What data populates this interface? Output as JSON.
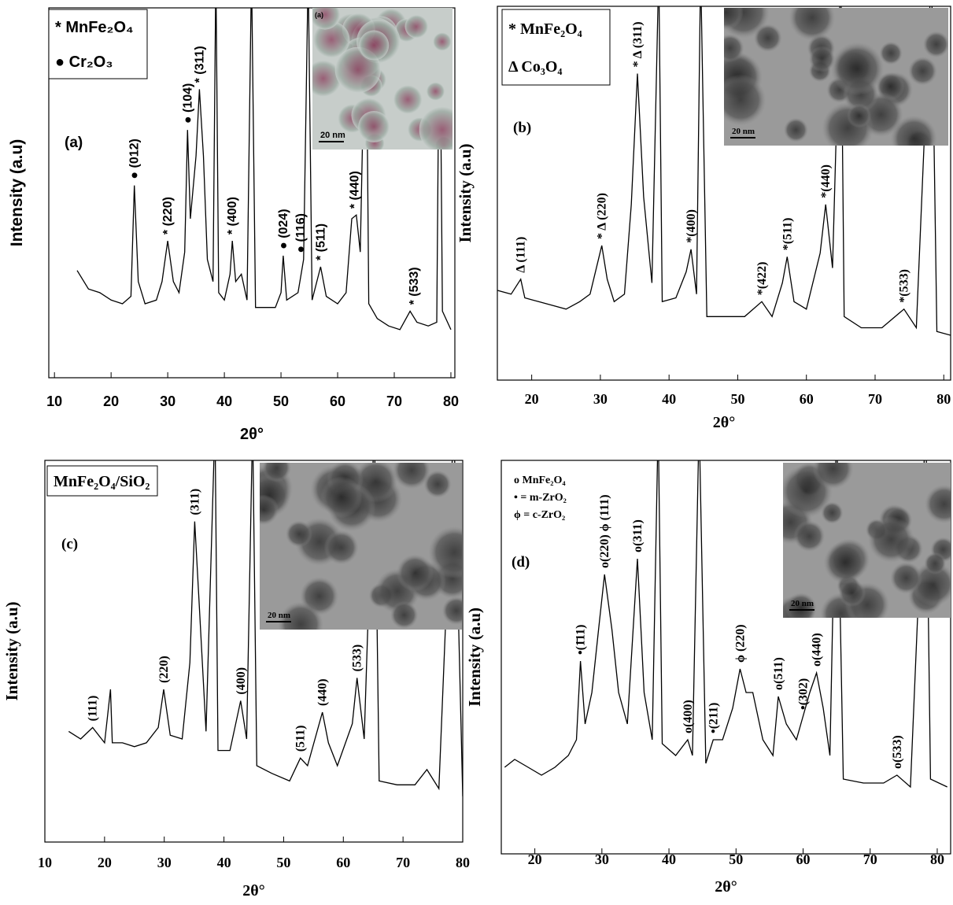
{
  "chart_data": [
    {
      "type": "line",
      "panel_label": "(a)",
      "x_label": "2θ°",
      "y_label": "Intensity (a.u)",
      "legend_entries": [
        "* MnFe₂O₄",
        "● Cr₂O₃"
      ],
      "inset": {
        "label": "(a)",
        "scale_bar": "20 nm"
      },
      "xlim": [
        9,
        80.7
      ],
      "xticks": [
        10,
        20,
        30,
        40,
        50,
        60,
        70,
        80
      ],
      "ylim": [
        0,
        100
      ],
      "color": "#000000",
      "x": [
        14,
        16,
        18,
        20,
        22,
        23.5,
        24.1,
        24.8,
        26,
        28,
        29,
        30,
        31,
        32,
        33,
        33.5,
        34,
        35,
        35.6,
        36.3,
        37,
        38,
        38.5,
        39,
        40,
        41,
        41.4,
        42,
        43,
        44,
        44.8,
        45.5,
        47,
        49,
        50,
        50.4,
        51,
        53,
        54,
        54.8,
        55.5,
        57,
        58,
        60,
        61.5,
        62.5,
        63.3,
        64,
        65,
        65.5,
        67,
        69,
        71,
        72.8,
        74,
        76,
        77.5,
        78,
        78.5,
        80
      ],
      "values": [
        29,
        24,
        23,
        21,
        20,
        22,
        52,
        26,
        20,
        21,
        26,
        37,
        26,
        23,
        34,
        67,
        43,
        60,
        78,
        60,
        32,
        26,
        110,
        23,
        21,
        28,
        37,
        26,
        28,
        21,
        110,
        19,
        19,
        19,
        23,
        33,
        21,
        23,
        32,
        110,
        21,
        30,
        22,
        20,
        23,
        43,
        44,
        34,
        110,
        20,
        16,
        14,
        13,
        18,
        15,
        14,
        15,
        110,
        18,
        13
      ],
      "annotations": [
        {
          "text": "● (012)",
          "x": 24.1
        },
        {
          "text": "* (220)",
          "x": 30
        },
        {
          "text": "● (104)",
          "x": 33.5
        },
        {
          "text": "* (311)",
          "x": 35.6
        },
        {
          "text": "* (400)",
          "x": 41.4
        },
        {
          "text": "● (024)",
          "x": 50.4
        },
        {
          "text": "● (116)",
          "x": 53.5
        },
        {
          "text": "* (511)",
          "x": 57
        },
        {
          "text": "* (440)",
          "x": 63
        },
        {
          "text": "* (533)",
          "x": 73.5
        }
      ]
    },
    {
      "type": "line",
      "panel_label": "(b)",
      "x_label": "2θ°",
      "y_label": "Intensity (a.u)",
      "legend_entries": [
        "* MnFe₂O₄",
        "Δ Co₃O₄"
      ],
      "inset": {
        "scale_bar": "20 nm"
      },
      "xlim": [
        15,
        81
      ],
      "xticks": [
        20,
        30,
        40,
        50,
        60,
        70,
        80
      ],
      "ylim": [
        0,
        100
      ],
      "color": "#000000",
      "x": [
        15,
        17,
        18.4,
        19,
        21,
        23,
        25,
        27,
        28.5,
        30.2,
        31,
        32,
        33.5,
        34.5,
        35.4,
        36.3,
        37.5,
        38.5,
        39,
        41,
        42.5,
        43.2,
        44,
        44.6,
        45.5,
        48,
        51,
        53.5,
        55,
        56.5,
        57.2,
        58.2,
        60,
        62,
        62.8,
        63.8,
        65,
        65.5,
        68,
        71,
        74.2,
        76,
        78.2,
        79,
        81
      ],
      "values": [
        24,
        23,
        27,
        22,
        21,
        20,
        19,
        21,
        23,
        36,
        27,
        21,
        23,
        47,
        82,
        49,
        26,
        110,
        21,
        22,
        29,
        35,
        23,
        110,
        17,
        17,
        17,
        21,
        17,
        26,
        33,
        21,
        19,
        34,
        47,
        30,
        110,
        17,
        14,
        14,
        19,
        14,
        110,
        13,
        12
      ],
      "annotations": [
        {
          "text": "Δ (111)",
          "x": 18.4
        },
        {
          "text": "* Δ (220)",
          "x": 30.2
        },
        {
          "text": "* Δ (311)",
          "x": 35.4
        },
        {
          "text": "*(400)",
          "x": 43.2
        },
        {
          "text": "*(422)",
          "x": 53.5
        },
        {
          "text": "*(511)",
          "x": 57.2
        },
        {
          "text": "*(440)",
          "x": 62.8
        },
        {
          "text": "*(533)",
          "x": 74.2
        }
      ]
    },
    {
      "type": "line",
      "panel_label": "(c)",
      "x_label": "2θ°",
      "y_label": "Intensity (a.u)",
      "legend_entries": [
        "MnFe₂O₄/SiO₂"
      ],
      "inset": {
        "scale_bar": "20 nm"
      },
      "xlim": [
        10,
        80
      ],
      "xticks": [
        10,
        20,
        30,
        40,
        50,
        60,
        70,
        80
      ],
      "ylim": [
        0,
        100
      ],
      "color": "#000000",
      "x": [
        14,
        16,
        18,
        20,
        21,
        21.3,
        23,
        25,
        27,
        29,
        29.9,
        31,
        33,
        34.3,
        35.1,
        35.8,
        37,
        38.5,
        39,
        41,
        42.8,
        43.8,
        44.8,
        45.5,
        48,
        51,
        52.8,
        54,
        56.5,
        57.5,
        59,
        61.5,
        62.3,
        63.5,
        65.2,
        66,
        69,
        72,
        74,
        76,
        78.5,
        80
      ],
      "values": [
        29,
        27,
        30,
        26,
        40,
        26,
        26,
        25,
        26,
        30,
        40,
        28,
        27,
        47,
        84,
        64,
        29,
        110,
        24,
        24,
        37,
        27,
        110,
        20,
        18,
        16,
        22,
        20,
        34,
        26,
        20,
        31,
        43,
        27,
        110,
        16,
        15,
        15,
        19,
        14,
        110,
        12
      ],
      "annotations": [
        {
          "text": "(111)",
          "x": 18
        },
        {
          "text": "(220)",
          "x": 29.9
        },
        {
          "text": "(311)",
          "x": 35.1
        },
        {
          "text": "(400)",
          "x": 42.8
        },
        {
          "text": "(511)",
          "x": 52.8
        },
        {
          "text": "(440)",
          "x": 56.5
        },
        {
          "text": "(533)",
          "x": 62.3
        }
      ]
    },
    {
      "type": "line",
      "panel_label": "(d)",
      "x_label": "2θ°",
      "y_label": "Intensity (a.u)",
      "legend_entries": [
        "o MnFe₂O₄",
        "• = m-ZrO₂",
        "ϕ = c-ZrO₂"
      ],
      "inset": {
        "scale_bar": "20 nm"
      },
      "xlim": [
        15,
        82
      ],
      "xticks": [
        20,
        30,
        40,
        50,
        60,
        70,
        80
      ],
      "ylim": [
        0,
        100
      ],
      "color": "#000000",
      "x": [
        15.5,
        17,
        19,
        21,
        23,
        25,
        26.2,
        26.8,
        27.5,
        28.5,
        29.5,
        30.4,
        31.5,
        32.5,
        33.8,
        35.3,
        36.3,
        37.5,
        38.4,
        39,
        41,
        42.8,
        43.5,
        44.5,
        45.5,
        46.6,
        48,
        49.5,
        50.6,
        51.5,
        52.5,
        54,
        55.5,
        56.3,
        57.5,
        59,
        60,
        61,
        62,
        63,
        64,
        65,
        66,
        69,
        72,
        74,
        76,
        78.3,
        79,
        81.5
      ],
      "values": [
        22,
        24,
        22,
        20,
        22,
        25,
        29,
        49,
        33,
        41,
        57,
        71,
        57,
        41,
        33,
        75,
        41,
        29,
        110,
        28,
        25,
        29,
        25,
        110,
        23,
        29,
        29,
        37,
        47,
        41,
        41,
        29,
        25,
        40,
        33,
        29,
        35,
        41,
        46,
        37,
        25,
        110,
        19,
        18,
        18,
        20,
        17,
        110,
        19,
        17
      ],
      "annotations": [
        {
          "text": "•(1̄11)",
          "x": 26.8
        },
        {
          "text": "o(220) ϕ (111)",
          "x": 30.4
        },
        {
          "text": "o(311)",
          "x": 35.3
        },
        {
          "text": "o(400)",
          "x": 42.8
        },
        {
          "text": "•(211)",
          "x": 46.6
        },
        {
          "text": "ϕ (220)",
          "x": 50.6
        },
        {
          "text": "o(511)",
          "x": 56.3
        },
        {
          "text": "•(302)",
          "x": 60
        },
        {
          "text": "o(440)",
          "x": 62
        },
        {
          "text": "o(533)",
          "x": 74
        }
      ]
    }
  ]
}
